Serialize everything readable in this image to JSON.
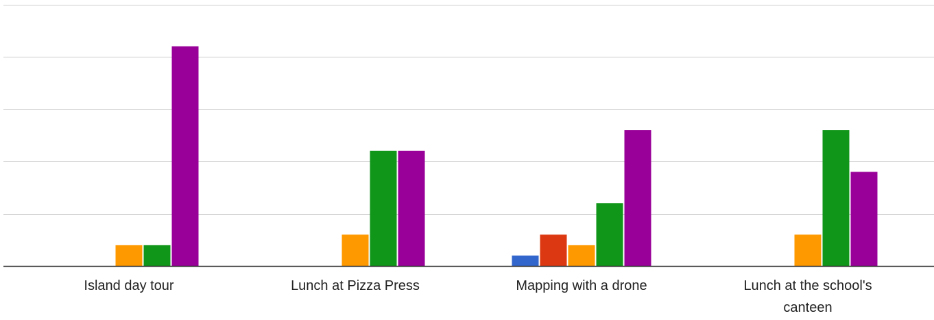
{
  "chart_data": {
    "type": "bar",
    "categories": [
      "Island day tour",
      "Lunch at Pizza Press",
      "Mapping with a drone",
      "Lunch at the school's canteen"
    ],
    "category_display_lines": [
      [
        "Island day tour"
      ],
      [
        "Lunch at Pizza Press"
      ],
      [
        "Mapping with a drone"
      ],
      [
        "Lunch at the school's",
        "canteen"
      ]
    ],
    "series": [
      {
        "color": "#3366cc",
        "values": [
          0,
          0,
          1,
          0
        ]
      },
      {
        "color": "#dc3912",
        "values": [
          0,
          0,
          3,
          0
        ]
      },
      {
        "color": "#ff9900",
        "values": [
          2,
          3,
          2,
          3
        ]
      },
      {
        "color": "#109618",
        "values": [
          2,
          11,
          6,
          13
        ]
      },
      {
        "color": "#990099",
        "values": [
          21,
          11,
          13,
          9
        ]
      }
    ],
    "ylim": [
      0,
      25
    ],
    "grid": true,
    "gridline_values": [
      5,
      10,
      15,
      20,
      25
    ],
    "title": "",
    "xlabel": "",
    "ylabel": ""
  }
}
